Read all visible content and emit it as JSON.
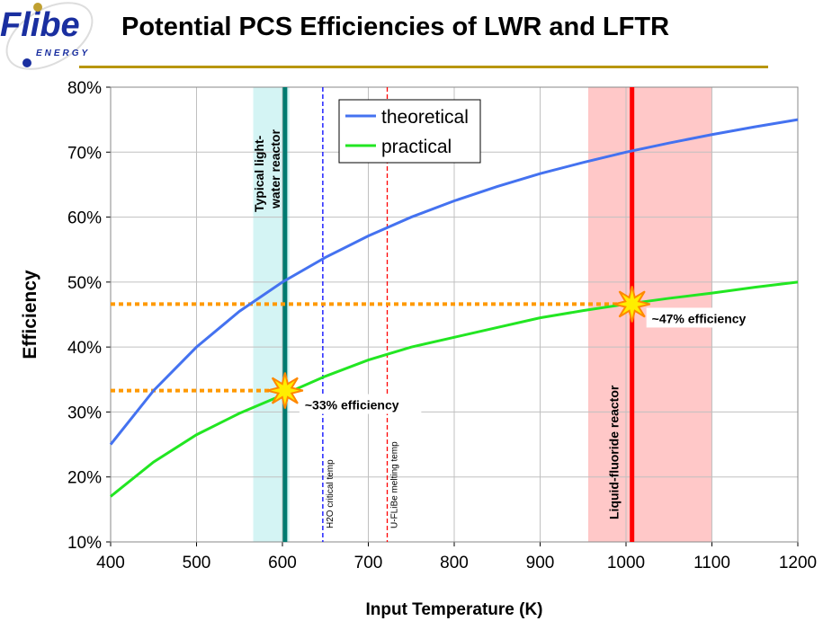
{
  "header": {
    "title": "Potential PCS Efficiencies of LWR and LFTR",
    "logo_text": "Flibe",
    "logo_subtext": "ENERGY"
  },
  "chart_data": {
    "type": "line",
    "title": "Potential PCS Efficiencies of LWR and LFTR",
    "xlabel": "Input Temperature (K)",
    "ylabel": "Efficiency",
    "xlim": [
      400,
      1200
    ],
    "ylim": [
      10,
      80
    ],
    "xticks": [
      "400",
      "500",
      "600",
      "700",
      "800",
      "900",
      "1000",
      "1100",
      "1200"
    ],
    "yticks": [
      "10%",
      "20%",
      "30%",
      "40%",
      "50%",
      "60%",
      "70%",
      "80%"
    ],
    "grid": true,
    "legend_position": "top-center",
    "x": [
      400,
      450,
      500,
      550,
      600,
      650,
      700,
      750,
      800,
      850,
      900,
      950,
      1000,
      1050,
      1100,
      1150,
      1200
    ],
    "series": [
      {
        "name": "theoretical",
        "color": "#4472f0",
        "values": [
          25,
          33.3,
          40,
          45.5,
          50,
          53.8,
          57.1,
          60,
          62.5,
          64.7,
          66.7,
          68.4,
          70,
          71.4,
          72.7,
          73.9,
          75
        ]
      },
      {
        "name": "practical",
        "color": "#22e622",
        "values": [
          17,
          22.3,
          26.5,
          29.8,
          32.6,
          35.5,
          38,
          40,
          41.5,
          43,
          44.5,
          45.6,
          46.6,
          47.5,
          48.3,
          49.2,
          50
        ]
      }
    ],
    "bands": [
      {
        "label": "Typical light-water reactor",
        "x0": 566,
        "x1": 608,
        "line": 603,
        "band_color": "#d4f4f4",
        "line_color": "#007a70"
      },
      {
        "label": "Liquid-fluoride reactor",
        "x0": 956,
        "x1": 1100,
        "line": 1007,
        "band_color": "#ffc8c8",
        "line_color": "#ff0000"
      }
    ],
    "reference_lines": [
      {
        "label": "H2O critical temp",
        "x": 647,
        "color": "#0000ff"
      },
      {
        "label": "U-FLiBe melting temp",
        "x": 722,
        "color": "#ff0000"
      }
    ],
    "annotations": [
      {
        "text": "~33% efficiency",
        "x": 603,
        "y": 33.3
      },
      {
        "text": "~47% efficiency",
        "x": 1007,
        "y": 46.6
      }
    ],
    "guide_color": "#ff9900"
  }
}
